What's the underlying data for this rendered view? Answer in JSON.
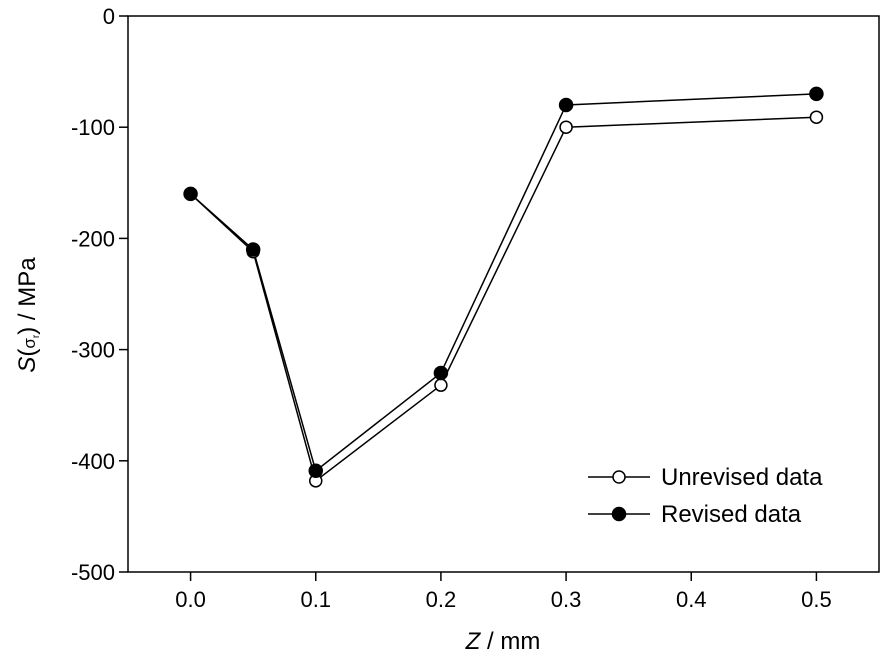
{
  "chart_data": {
    "type": "line",
    "title": "",
    "xlabel": {
      "symbol": "Z",
      "unit": " / mm"
    },
    "ylabel": {
      "symbol": "S",
      "open": "(",
      "sub": "σ",
      "subsub": "r",
      "close": ")",
      "unit": " / MPa"
    },
    "xlim": [
      -0.05,
      0.55
    ],
    "ylim": [
      -500,
      0
    ],
    "xticks": [
      0.0,
      0.1,
      0.2,
      0.3,
      0.4,
      0.5
    ],
    "xtick_labels": [
      "0.0",
      "0.1",
      "0.2",
      "0.3",
      "0.4",
      "0.5"
    ],
    "yticks": [
      0,
      -100,
      -200,
      -300,
      -400,
      -500
    ],
    "ytick_labels": [
      "0",
      "-100",
      "-200",
      "-300",
      "-400",
      "-500"
    ],
    "grid": false,
    "legend_position": "bottom-right",
    "series": [
      {
        "name": "Unrevised data",
        "marker": "open-circle",
        "x": [
          0.0,
          0.05,
          0.1,
          0.2,
          0.3,
          0.5
        ],
        "y": [
          -160,
          -212,
          -418,
          -332,
          -100,
          -91
        ]
      },
      {
        "name": "Revised data",
        "marker": "filled-circle",
        "x": [
          0.0,
          0.05,
          0.1,
          0.2,
          0.3,
          0.5
        ],
        "y": [
          -160,
          -210,
          -409,
          -321,
          -80,
          -70
        ]
      }
    ]
  }
}
